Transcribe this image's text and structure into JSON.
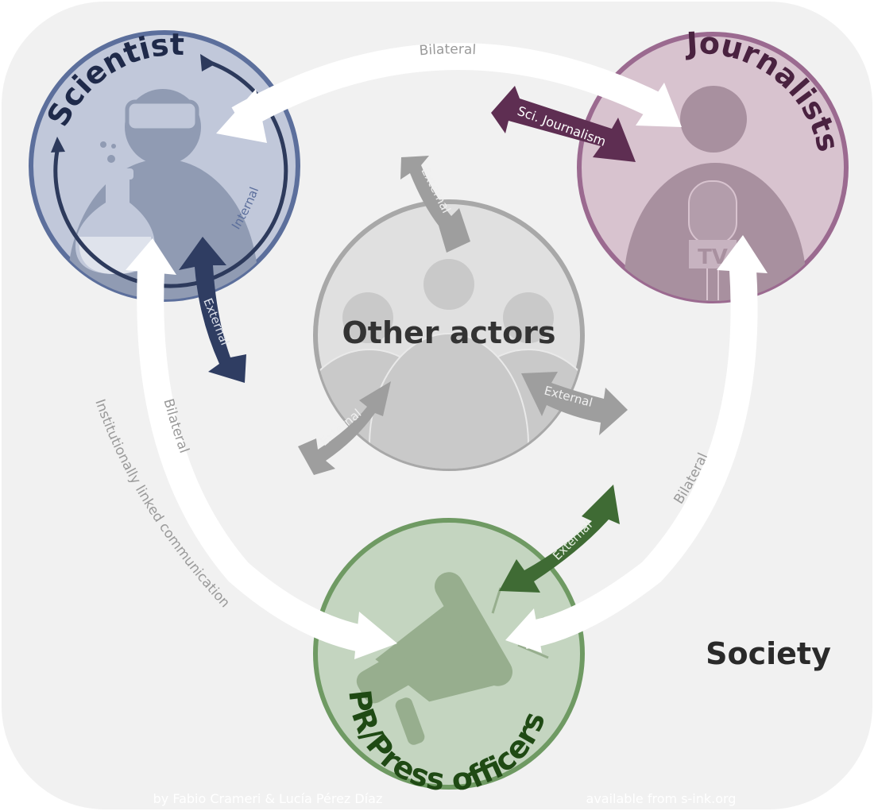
{
  "society": {
    "label": "Society"
  },
  "actors": {
    "scientists": {
      "label": "Scientists"
    },
    "journalists": {
      "label": "Journalists"
    },
    "other": {
      "label": "Other actors"
    },
    "pr": {
      "label": "PR/Press officers"
    }
  },
  "links": {
    "bilateral_top": "Bilateral",
    "bilateral_left": "Bilateral",
    "bilateral_right": "Bilateral",
    "internal": "Internal",
    "sci_journalism": "Sci. Journalism",
    "external_scientists": "External",
    "external_other_top": "External",
    "external_other_left": "External",
    "external_other_right": "External",
    "external_pr": "External",
    "institutional": "Institutionally linked communication"
  },
  "tv_label": "TV",
  "credits": {
    "authors": "by Fabio Crameri & Lucía Pérez Díaz",
    "source": "available from s-ink.org"
  },
  "colors": {
    "scientists": "#5c6f9c",
    "journalists": "#9b6a90",
    "other": "#a8a8a8",
    "pr": "#6f9a63",
    "society_bg": "#f1f1f1"
  }
}
